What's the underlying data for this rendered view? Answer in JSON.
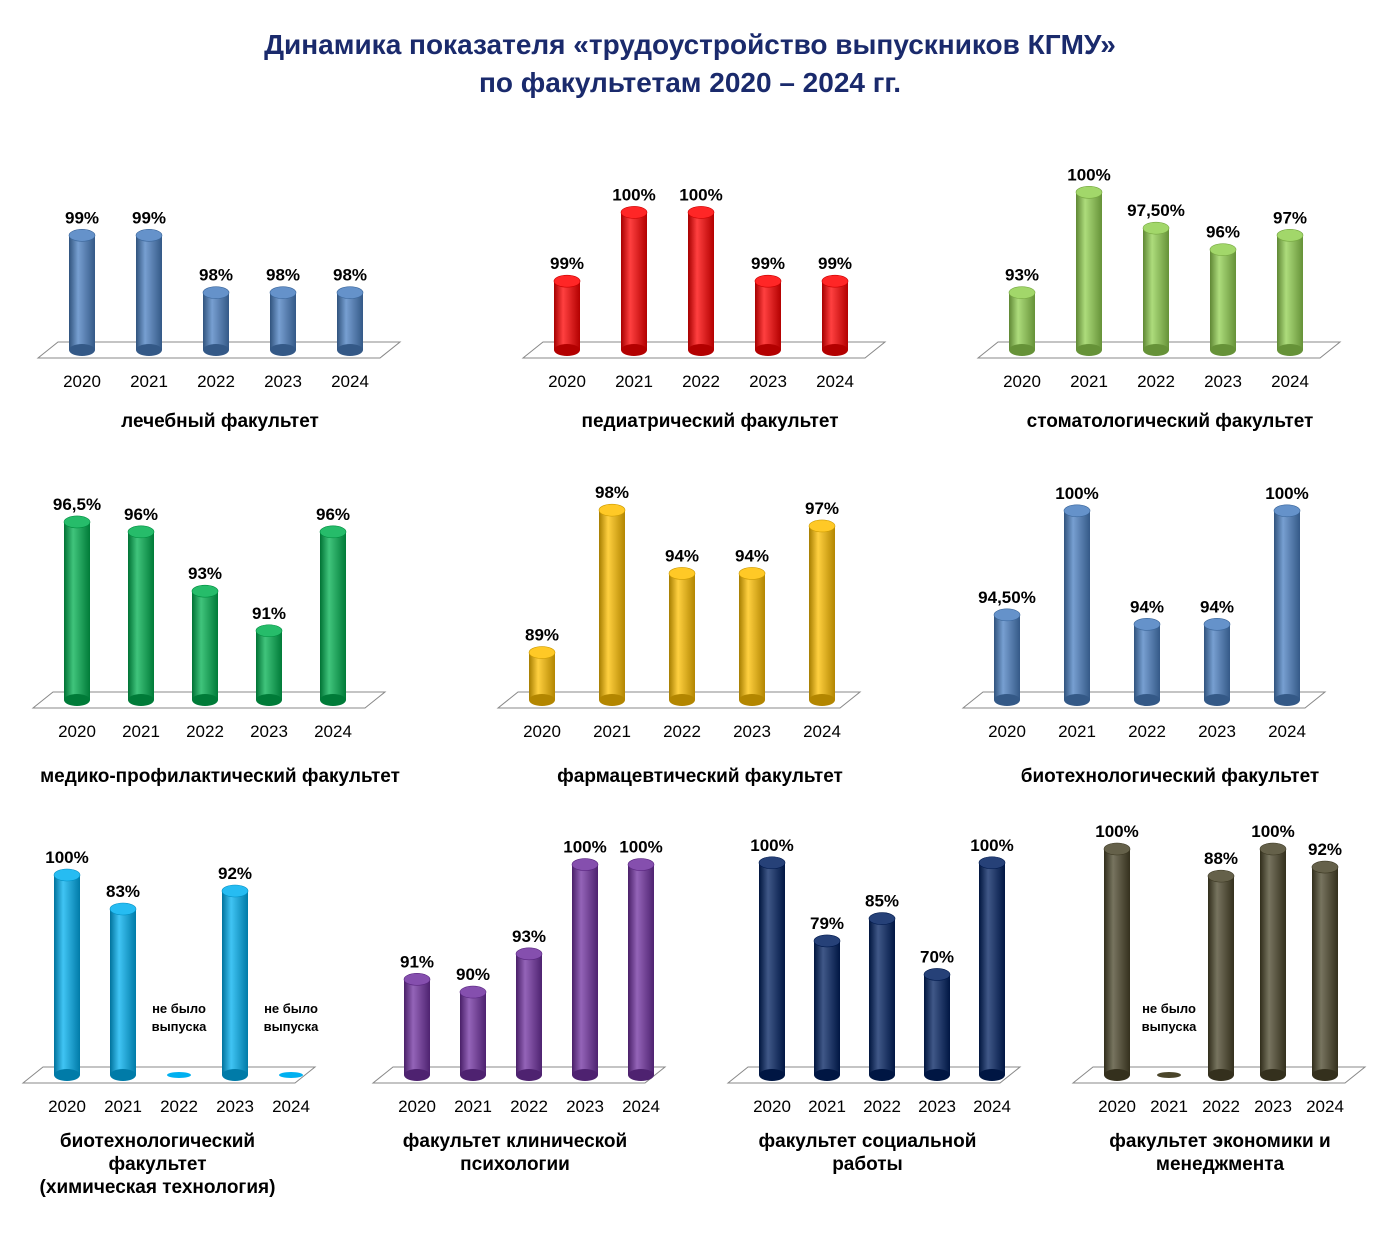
{
  "title": {
    "line1": "Динамика показателя «трудоустройство выпускников КГМУ»",
    "line2": "по факультетам 2020 – 2024 гг."
  },
  "chart_data": [
    {
      "type": "bar",
      "caption_lines": [
        "лечебный факультет"
      ],
      "color": "#4a7fc1",
      "categories": [
        "2020",
        "2021",
        "2022",
        "2023",
        "2024"
      ],
      "values": [
        99,
        99,
        98,
        98,
        98
      ],
      "labels": [
        "99%",
        "99%",
        "98%",
        "98%",
        "98%"
      ],
      "ylim": [
        97,
        100
      ]
    },
    {
      "type": "bar",
      "caption_lines": [
        "педиатрический факультет"
      ],
      "color": "#ff0000",
      "categories": [
        "2020",
        "2021",
        "2022",
        "2023",
        "2024"
      ],
      "values": [
        99,
        100,
        100,
        99,
        99
      ],
      "labels": [
        "99%",
        "100%",
        "100%",
        "99%",
        "99%"
      ],
      "ylim": [
        98,
        100.5
      ]
    },
    {
      "type": "bar",
      "caption_lines": [
        "стоматологический факультет"
      ],
      "color": "#92d050",
      "categories": [
        "2020",
        "2021",
        "2022",
        "2023",
        "2024"
      ],
      "values": [
        93,
        100,
        97.5,
        96,
        97
      ],
      "labels": [
        "93%",
        "100%",
        "97,50%",
        "96%",
        "97%"
      ],
      "ylim": [
        89,
        100.3
      ]
    },
    {
      "type": "bar",
      "caption_lines": [
        "медико-профилактический факультет"
      ],
      "color": "#00b050",
      "categories": [
        "2020",
        "2021",
        "2022",
        "2023",
        "2024"
      ],
      "values": [
        96.5,
        96,
        93,
        91,
        96
      ],
      "labels": [
        "96,5%",
        "96%",
        "93%",
        "91%",
        "96%"
      ],
      "ylim": [
        87.5,
        96.7
      ]
    },
    {
      "type": "bar",
      "caption_lines": [
        "фармацевтический факультет"
      ],
      "color": "#ffc000",
      "categories": [
        "2020",
        "2021",
        "2022",
        "2023",
        "2024"
      ],
      "values": [
        89,
        98,
        94,
        94,
        97
      ],
      "labels": [
        "89%",
        "98%",
        "94%",
        "94%",
        "97%"
      ],
      "ylim": [
        86,
        98.2
      ]
    },
    {
      "type": "bar",
      "caption_lines": [
        "биотехнологический факультет"
      ],
      "color": "#4a7fc1",
      "categories": [
        "2020",
        "2021",
        "2022",
        "2023",
        "2024"
      ],
      "values": [
        94.5,
        100,
        94,
        94,
        100
      ],
      "labels": [
        "94,50%",
        "100%",
        "94%",
        "94%",
        "100%"
      ],
      "ylim": [
        90,
        100.2
      ]
    },
    {
      "type": "bar",
      "caption_lines": [
        "биотехнологический",
        "факультет",
        "(химическая технология)"
      ],
      "color": "#00b0f0",
      "categories": [
        "2020",
        "2021",
        "2022",
        "2023",
        "2024"
      ],
      "values": [
        100,
        83,
        0,
        92,
        0
      ],
      "labels": [
        "100%",
        "83%",
        "",
        "92%",
        ""
      ],
      "no_release": [
        "",
        "",
        "не было выпуска",
        "",
        "не было выпуска"
      ],
      "ylim": [
        0,
        100
      ]
    },
    {
      "type": "bar",
      "caption_lines": [
        "факультет клинической",
        "психологии"
      ],
      "color": "#7030a0",
      "categories": [
        "2020",
        "2021",
        "2022",
        "2023",
        "2024"
      ],
      "values": [
        91,
        90,
        93,
        100,
        100
      ],
      "labels": [
        "91%",
        "90%",
        "93%",
        "100%",
        "100%"
      ],
      "ylim": [
        83.5,
        100.2
      ]
    },
    {
      "type": "bar",
      "caption_lines": [
        "факультет социальной",
        "работы"
      ],
      "color": "#002060",
      "categories": [
        "2020",
        "2021",
        "2022",
        "2023",
        "2024"
      ],
      "values": [
        100,
        79,
        85,
        70,
        100
      ],
      "labels": [
        "100%",
        "79%",
        "85%",
        "70%",
        "100%"
      ],
      "ylim": [
        43,
        100.2
      ]
    },
    {
      "type": "bar",
      "caption_lines": [
        "факультет экономики и",
        "менеджмента"
      ],
      "color": "#4a452a",
      "categories": [
        "2020",
        "2021",
        "2022",
        "2023",
        "2024"
      ],
      "values": [
        100,
        0,
        88,
        100,
        92
      ],
      "labels": [
        "100%",
        "",
        "88%",
        "100%",
        "92%"
      ],
      "no_release": [
        "",
        "не было выпуска",
        "",
        "",
        ""
      ],
      "ylim": [
        0,
        100
      ]
    }
  ]
}
